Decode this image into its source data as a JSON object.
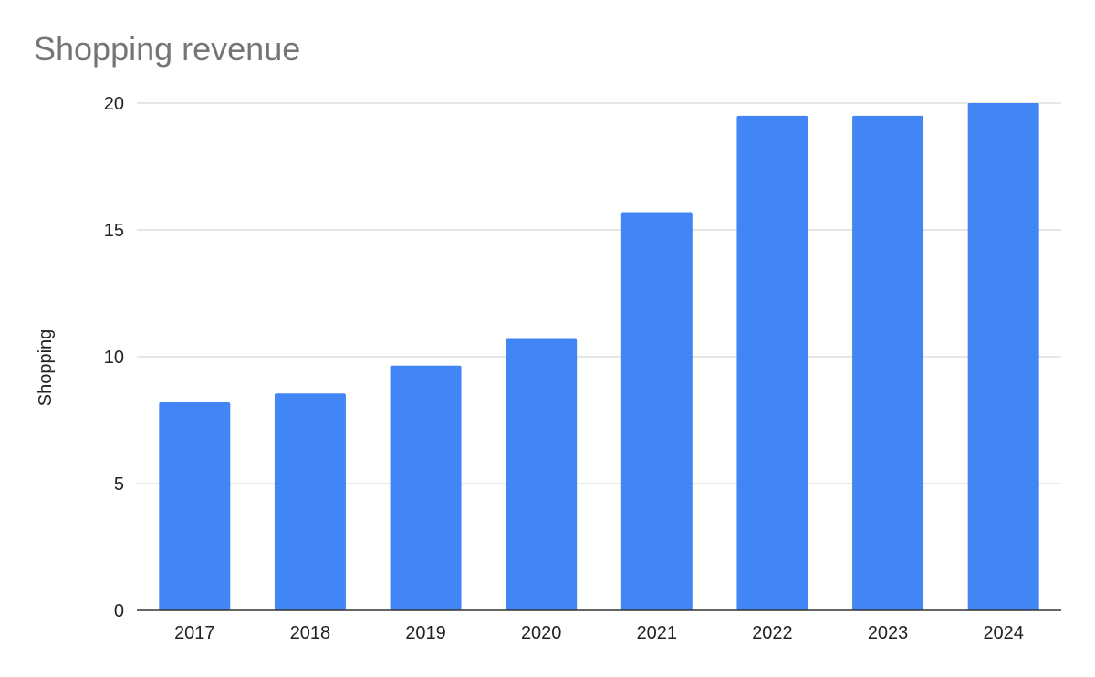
{
  "chart_data": {
    "type": "bar",
    "title": "Shopping revenue",
    "xlabel": "",
    "ylabel": "Shopping",
    "categories": [
      "2017",
      "2018",
      "2019",
      "2020",
      "2021",
      "2022",
      "2023",
      "2024"
    ],
    "series": [
      {
        "values": [
          8.2,
          8.55,
          9.65,
          10.7,
          15.7,
          19.5,
          19.5,
          20.0
        ]
      }
    ],
    "y_ticks": [
      "0",
      "5",
      "10",
      "15",
      "20"
    ],
    "ylim": [
      0,
      20
    ],
    "grid": true,
    "legend": "none",
    "colors": {
      "bar": "#4285f4",
      "grid": "#cccccc",
      "axis": "#333333",
      "title": "#757575",
      "text": "#222222"
    }
  }
}
